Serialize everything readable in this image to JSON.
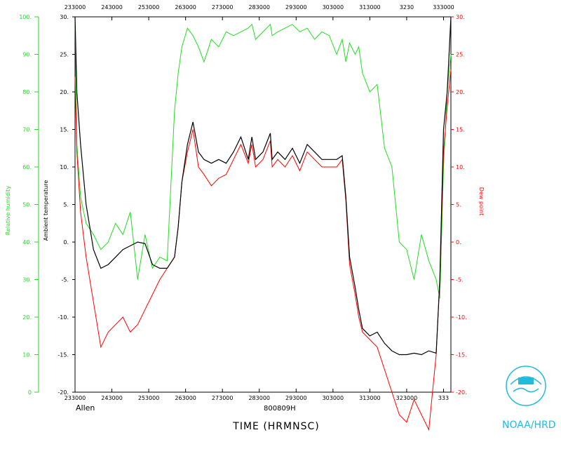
{
  "chart_data": {
    "type": "line",
    "xlabel": "TIME (HRMNSC)",
    "storm_name": "Allen",
    "date_label": "800809H",
    "x_ticks": [
      "233000",
      "243000",
      "253000",
      "263000",
      "273000",
      "283000",
      "293000",
      "303000",
      "313000",
      "323000",
      "333000"
    ],
    "x_range": [
      233000,
      335000
    ],
    "top_ticks_visible": [
      "233000",
      "243000",
      "253000",
      "263000",
      "273000",
      "283000",
      "293000",
      "303000",
      "313000",
      "3230",
      "333000"
    ],
    "bottom_ticks_visible": [
      "233000",
      "243000",
      "253000",
      "263000",
      "273000",
      "283000",
      "293000",
      "303000",
      "313000",
      "323000",
      "333"
    ],
    "left_outer_axis": {
      "label": "Relative humidity",
      "color": "#22dd22",
      "range": [
        0,
        100
      ],
      "tick_labels": [
        "0",
        "10.",
        "20.",
        "30.",
        "40.",
        "50.",
        "60.",
        "70.",
        "80.",
        "90.",
        "100."
      ]
    },
    "left_inner_axis": {
      "label": "Ambient temperature",
      "color": "#000000",
      "range": [
        -20,
        30
      ],
      "tick_labels": [
        "-20.",
        "-15.",
        "-10.",
        "-5.",
        "0.",
        "5.",
        "10.",
        "15.",
        "20.",
        "25.",
        "30."
      ]
    },
    "right_axis": {
      "label": "Dew point",
      "color": "#ff0000",
      "range": [
        -20,
        30
      ],
      "tick_labels": [
        "-20.",
        "-15.",
        "-10.",
        "-5.",
        "0.",
        "5.",
        "10.",
        "15.",
        "20.",
        "25.",
        "30."
      ]
    },
    "series": [
      {
        "color": "#000000",
        "x": [
          233000,
          233500,
          234500,
          236000,
          238000,
          240000,
          242000,
          244000,
          246000,
          248000,
          250000,
          252000,
          254000,
          256000,
          258000,
          260000,
          261000,
          262000,
          263500,
          265000,
          266500,
          268000,
          270000,
          272000,
          274000,
          276000,
          278000,
          280000,
          281000,
          282000,
          284000,
          286000,
          286500,
          288000,
          290000,
          292000,
          294000,
          296000,
          298000,
          300000,
          302000,
          304000,
          305500,
          306500,
          307500,
          309000,
          310000,
          311000,
          313000,
          315000,
          317000,
          319000,
          321000,
          323000,
          325000,
          327000,
          329000,
          331000,
          332000,
          333000,
          334000,
          335000
        ],
        "y": [
          30,
          20,
          13,
          5,
          -1,
          -3.5,
          -3,
          -2,
          -1,
          -0.5,
          0,
          -0.2,
          -3,
          -3.5,
          -3.5,
          -2,
          2,
          8,
          13,
          16,
          12,
          11,
          10.5,
          11,
          10.5,
          12,
          14,
          11,
          14,
          11,
          12,
          14.5,
          11,
          12,
          11,
          12.5,
          10.5,
          13,
          12,
          11,
          11,
          11,
          11.5,
          6,
          -2,
          -6,
          -9,
          -11.5,
          -12.5,
          -12,
          -13.5,
          -14.5,
          -15,
          -15,
          -14.8,
          -15,
          -14.5,
          -14.8,
          -5,
          15,
          20,
          30
        ]
      },
      {
        "color": "#ff0000",
        "x": [
          233000,
          233500,
          234500,
          236000,
          238000,
          240000,
          242000,
          244000,
          246000,
          248000,
          250000,
          252000,
          254000,
          256000,
          258000,
          260000,
          261000,
          262000,
          263500,
          265000,
          266500,
          268000,
          270000,
          272000,
          274000,
          276000,
          278000,
          280000,
          281000,
          282000,
          284000,
          286000,
          286500,
          288000,
          290000,
          292000,
          294000,
          296000,
          298000,
          300000,
          302000,
          304000,
          305500,
          306500,
          307500,
          309000,
          310000,
          311000,
          313000,
          315000,
          317000,
          319000,
          321000,
          323000,
          325000,
          327000,
          329000,
          331000,
          332000,
          333000,
          334000,
          335000
        ],
        "y": [
          22,
          12,
          4,
          -2,
          -8,
          -14,
          -12,
          -11,
          -10,
          -12,
          -11,
          -9,
          -7,
          -5,
          -3.5,
          -2,
          2,
          8,
          12,
          15,
          10,
          9,
          7.5,
          8.5,
          9,
          11,
          13,
          10.5,
          13,
          10,
          11,
          13.5,
          10,
          11,
          10,
          11.5,
          9.5,
          12,
          11,
          10,
          10,
          10,
          11,
          5.5,
          -3,
          -7,
          -10,
          -12,
          -13,
          -14,
          -17,
          -20,
          -23,
          -24,
          -21,
          -23,
          -25,
          -15,
          -5,
          12,
          18,
          23
        ]
      },
      {
        "color": "#22dd22",
        "x": [
          233000,
          233500,
          234500,
          236000,
          238000,
          240000,
          242000,
          244000,
          246000,
          248000,
          250000,
          252000,
          254000,
          256000,
          258000,
          260000,
          261000,
          262000,
          263500,
          265000,
          266500,
          268000,
          270000,
          272000,
          274000,
          276000,
          278000,
          280000,
          281000,
          282000,
          284000,
          286000,
          286500,
          288000,
          290000,
          292000,
          294000,
          296000,
          298000,
          300000,
          302000,
          304000,
          305500,
          306500,
          307500,
          309000,
          310000,
          311000,
          313000,
          315000,
          317000,
          319000,
          321000,
          323000,
          325000,
          327000,
          329000,
          331000,
          332000,
          333000,
          334000,
          335000
        ],
        "y": [
          100,
          66,
          52,
          45,
          42,
          38,
          40,
          45,
          42,
          48,
          30,
          42,
          33,
          36,
          35,
          75,
          85,
          92,
          97,
          95,
          92,
          88,
          94,
          92,
          96,
          95,
          96,
          97,
          98,
          94,
          96,
          98,
          95,
          96,
          97,
          98,
          96,
          97,
          94,
          96,
          95,
          90,
          94,
          88,
          93,
          90,
          92,
          85,
          80,
          82,
          65,
          60,
          40,
          38,
          30,
          42,
          35,
          30,
          25,
          60,
          80,
          90
        ]
      }
    ]
  },
  "footer": {
    "noaa_label": "NOAA/HRD"
  }
}
